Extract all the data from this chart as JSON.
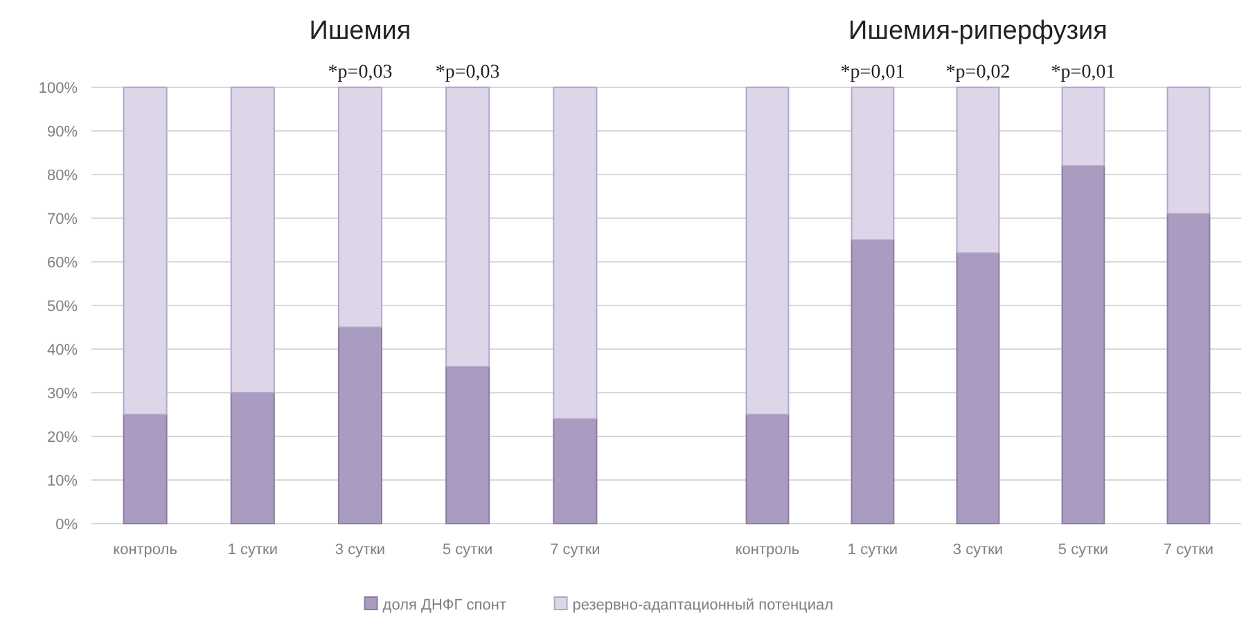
{
  "chart_data": [
    {
      "type": "bar",
      "title": "Ишемия",
      "stacked": true,
      "categories": [
        "контроль",
        "1 сутки",
        "3 сутки",
        "5 сутки",
        "7 сутки"
      ],
      "series": [
        {
          "name": "доля ДНФГ спонт",
          "color": "#a99cc0",
          "values": [
            25,
            30,
            45,
            36,
            24
          ]
        },
        {
          "name": "резервно-адаптационный потенциал",
          "color": "#ddd5e8",
          "values": [
            75,
            70,
            55,
            64,
            76
          ]
        }
      ],
      "ylim": [
        0,
        100
      ],
      "yticks": [
        {
          "value": 0,
          "label": "0%"
        },
        {
          "value": 10,
          "label": "10%"
        },
        {
          "value": 20,
          "label": "20%"
        },
        {
          "value": 30,
          "label": "30%"
        },
        {
          "value": 40,
          "label": "40%"
        },
        {
          "value": 50,
          "label": "50%"
        },
        {
          "value": 60,
          "label": "60%"
        },
        {
          "value": 70,
          "label": "70%"
        },
        {
          "value": 80,
          "label": "80%"
        },
        {
          "value": 90,
          "label": "90%"
        },
        {
          "value": 100,
          "label": "100%"
        }
      ],
      "grid": "y",
      "legend": "bottom",
      "annotations": [
        {
          "text": "*p=0,03",
          "x": "3 сутки",
          "y": 100
        },
        {
          "text": "*p=0,03",
          "x": "5 сутки",
          "y": 100
        }
      ]
    },
    {
      "type": "bar",
      "title": "Ишемия-риперфузия",
      "stacked": true,
      "categories": [
        "контроль",
        "1 сутки",
        "3 сутки",
        "5 сутки",
        "7 сутки"
      ],
      "series": [
        {
          "color": "#a99cc0",
          "values": [
            25,
            65,
            62,
            82,
            71
          ]
        },
        {
          "color": "#ddd5e8",
          "values": [
            75,
            35,
            38,
            18,
            29
          ]
        }
      ],
      "ylim": [
        0,
        100
      ],
      "tick_labels": "x",
      "annotations": [
        {
          "text": "*p=0,01",
          "x": "1 сутки",
          "y": 100
        },
        {
          "text": "*p=0,02",
          "x": "3 сутки",
          "y": 100
        },
        {
          "text": "*p=0,01",
          "x": "5 сутки",
          "y": 100
        }
      ]
    }
  ]
}
